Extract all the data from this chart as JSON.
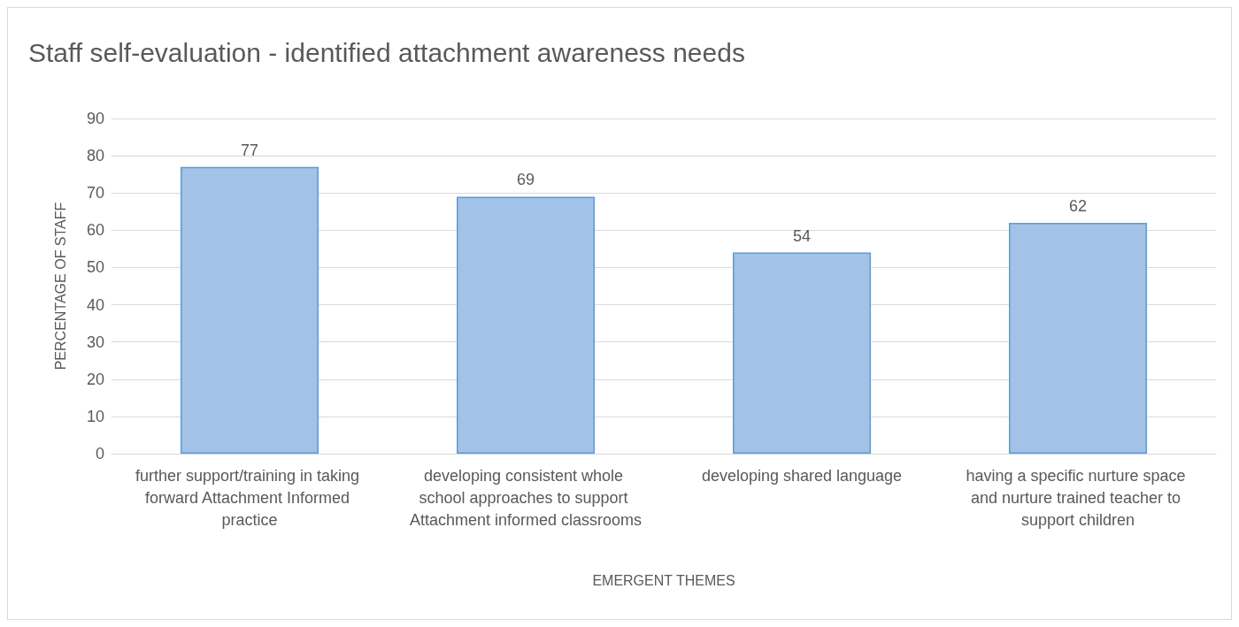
{
  "chart_data": {
    "type": "bar",
    "title": "Staff self-evaluation - identified attachment awareness needs",
    "xlabel": "EMERGENT THEMES",
    "ylabel": "PERCENTAGE OF STAFF",
    "categories": [
      "further support/training in taking forward Attachment Informed practice",
      "developing consistent whole school approaches to support Attachment informed classrooms",
      "developing shared language",
      "having a specific nurture space and nurture trained teacher to support children"
    ],
    "values": [
      77,
      69,
      54,
      62
    ],
    "color": "#a3c2e8",
    "ylim": [
      0,
      90
    ],
    "yticks": [
      0,
      10,
      20,
      30,
      40,
      50,
      60,
      70,
      80,
      90
    ],
    "grid": "y",
    "data_labels": true
  }
}
